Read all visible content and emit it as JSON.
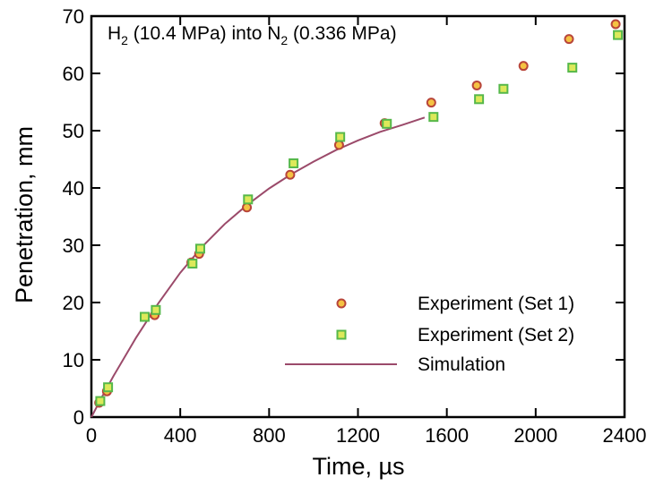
{
  "chart_data": {
    "type": "scatter",
    "annotation": {
      "species_a": "H",
      "species_a_sub": "2",
      "pressure_a": " (10.4 MPa) into N",
      "species_b_sub": "2",
      "pressure_b": " (0.336 MPa)"
    },
    "xlabel": "Time, µs",
    "ylabel": "Penetration, mm",
    "xlim": [
      0,
      2400
    ],
    "ylim": [
      0,
      70
    ],
    "x_ticks": [
      "0",
      "400",
      "800",
      "1200",
      "1600",
      "2000",
      "2400"
    ],
    "y_ticks": [
      "0",
      "10",
      "20",
      "30",
      "40",
      "50",
      "60",
      "70"
    ],
    "grid": false,
    "legend_position": "center-right",
    "series": [
      {
        "name": "Experiment (Set 1)",
        "marker": "circle",
        "fill": "#f5c242",
        "stroke": "#b8453a",
        "points": [
          [
            35,
            2.5
          ],
          [
            70,
            4.5
          ],
          [
            285,
            17.8
          ],
          [
            450,
            27.0
          ],
          [
            485,
            28.5
          ],
          [
            700,
            36.6
          ],
          [
            895,
            42.3
          ],
          [
            1115,
            47.5
          ],
          [
            1320,
            51.3
          ],
          [
            1530,
            54.9
          ],
          [
            1735,
            57.9
          ],
          [
            1945,
            61.3
          ],
          [
            2150,
            66.0
          ],
          [
            2360,
            68.6
          ]
        ]
      },
      {
        "name": "Experiment (Set 2)",
        "marker": "square",
        "fill": "#dde95a",
        "stroke": "#56b84a",
        "points": [
          [
            40,
            2.8
          ],
          [
            75,
            5.2
          ],
          [
            240,
            17.5
          ],
          [
            290,
            18.7
          ],
          [
            455,
            26.8
          ],
          [
            490,
            29.4
          ],
          [
            705,
            38.0
          ],
          [
            910,
            44.3
          ],
          [
            1120,
            48.9
          ],
          [
            1330,
            51.2
          ],
          [
            1540,
            52.4
          ],
          [
            1745,
            55.5
          ],
          [
            1855,
            57.3
          ],
          [
            2165,
            61.0
          ],
          [
            2370,
            66.7
          ]
        ]
      },
      {
        "name": "Simulation",
        "marker": "line",
        "stroke": "#9b4a6a",
        "points": [
          [
            0,
            0
          ],
          [
            50,
            3.7
          ],
          [
            100,
            7.2
          ],
          [
            200,
            13.8
          ],
          [
            300,
            19.8
          ],
          [
            400,
            25.2
          ],
          [
            500,
            29.8
          ],
          [
            600,
            33.7
          ],
          [
            700,
            37.0
          ],
          [
            800,
            39.9
          ],
          [
            900,
            42.4
          ],
          [
            1000,
            44.6
          ],
          [
            1100,
            46.6
          ],
          [
            1200,
            48.3
          ],
          [
            1300,
            49.8
          ],
          [
            1400,
            51.0
          ],
          [
            1500,
            52.3
          ]
        ]
      }
    ]
  }
}
